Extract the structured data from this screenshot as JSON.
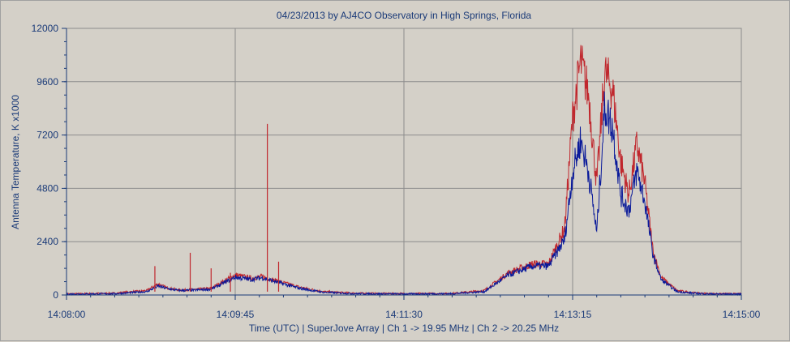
{
  "chart_data": {
    "type": "line",
    "title": "04/23/2013  by  AJ4CO Observatory  in  High Springs, Florida",
    "xlabel": "Time (UTC)  |  SuperJove Array  |  Ch 1 -> 19.95 MHz  |  Ch 2 -> 20.25 MHz",
    "ylabel": "Antenna Temperature, K x1000",
    "x_ticks": [
      "14:08:00",
      "14:09:45",
      "14:11:30",
      "14:13:15",
      "14:15:00"
    ],
    "y_ticks": [
      "0",
      "2400",
      "4800",
      "7200",
      "9600",
      "12000"
    ],
    "xlim": [
      "14:08:00",
      "14:15:00"
    ],
    "ylim": [
      0,
      12000
    ],
    "grid": true,
    "colors": {
      "ch1": "#c0272d",
      "ch2": "#0a1a9a",
      "plot_bg": "#d4d0c8",
      "grid": "#8c8c8c",
      "text": "#1a3a78"
    },
    "series": [
      {
        "key": "ch1",
        "x": [
          "14:08:00",
          "14:08:30",
          "14:08:50",
          "14:08:57",
          "14:09:02",
          "14:09:10",
          "14:09:20",
          "14:09:30",
          "14:09:45",
          "14:09:55",
          "14:10:02",
          "14:10:10",
          "14:10:25",
          "14:10:40",
          "14:11:00",
          "14:11:30",
          "14:12:00",
          "14:12:20",
          "14:12:35",
          "14:12:50",
          "14:13:00",
          "14:13:10",
          "14:13:15",
          "14:13:20",
          "14:13:25",
          "14:13:30",
          "14:13:35",
          "14:13:40",
          "14:13:45",
          "14:13:50",
          "14:13:55",
          "14:14:00",
          "14:14:05",
          "14:14:10",
          "14:14:20",
          "14:14:30",
          "14:14:40",
          "14:15:00"
        ],
        "values": [
          50,
          80,
          200,
          500,
          330,
          220,
          250,
          300,
          900,
          760,
          820,
          650,
          350,
          150,
          80,
          60,
          70,
          200,
          1000,
          1400,
          1400,
          3000,
          8000,
          10500,
          9000,
          5000,
          10000,
          9200,
          6000,
          4500,
          6800,
          5000,
          2000,
          800,
          200,
          100,
          60,
          50
        ]
      },
      {
        "key": "ch2",
        "x": [
          "14:08:00",
          "14:08:30",
          "14:08:50",
          "14:08:57",
          "14:09:02",
          "14:09:10",
          "14:09:20",
          "14:09:30",
          "14:09:45",
          "14:09:55",
          "14:10:02",
          "14:10:10",
          "14:10:25",
          "14:10:40",
          "14:11:00",
          "14:11:30",
          "14:12:00",
          "14:12:20",
          "14:12:35",
          "14:12:50",
          "14:13:00",
          "14:13:10",
          "14:13:15",
          "14:13:20",
          "14:13:25",
          "14:13:30",
          "14:13:35",
          "14:13:40",
          "14:13:45",
          "14:13:50",
          "14:13:55",
          "14:14:00",
          "14:14:05",
          "14:14:10",
          "14:14:20",
          "14:14:30",
          "14:14:40",
          "14:15:00"
        ],
        "values": [
          40,
          60,
          150,
          400,
          300,
          200,
          220,
          260,
          800,
          700,
          780,
          600,
          300,
          120,
          60,
          50,
          60,
          150,
          900,
          1300,
          1300,
          2500,
          5500,
          7000,
          5500,
          2800,
          8500,
          7500,
          4500,
          3800,
          5600,
          4200,
          1800,
          700,
          150,
          80,
          50,
          40
        ]
      }
    ],
    "spikes_ch1": [
      {
        "x": "14:10:05",
        "value": 7700
      },
      {
        "x": "14:08:55",
        "value": 1300
      },
      {
        "x": "14:09:17",
        "value": 1900
      },
      {
        "x": "14:09:30",
        "value": 1200
      },
      {
        "x": "14:09:42",
        "value": 1000
      },
      {
        "x": "14:10:12",
        "value": 1500
      }
    ]
  }
}
